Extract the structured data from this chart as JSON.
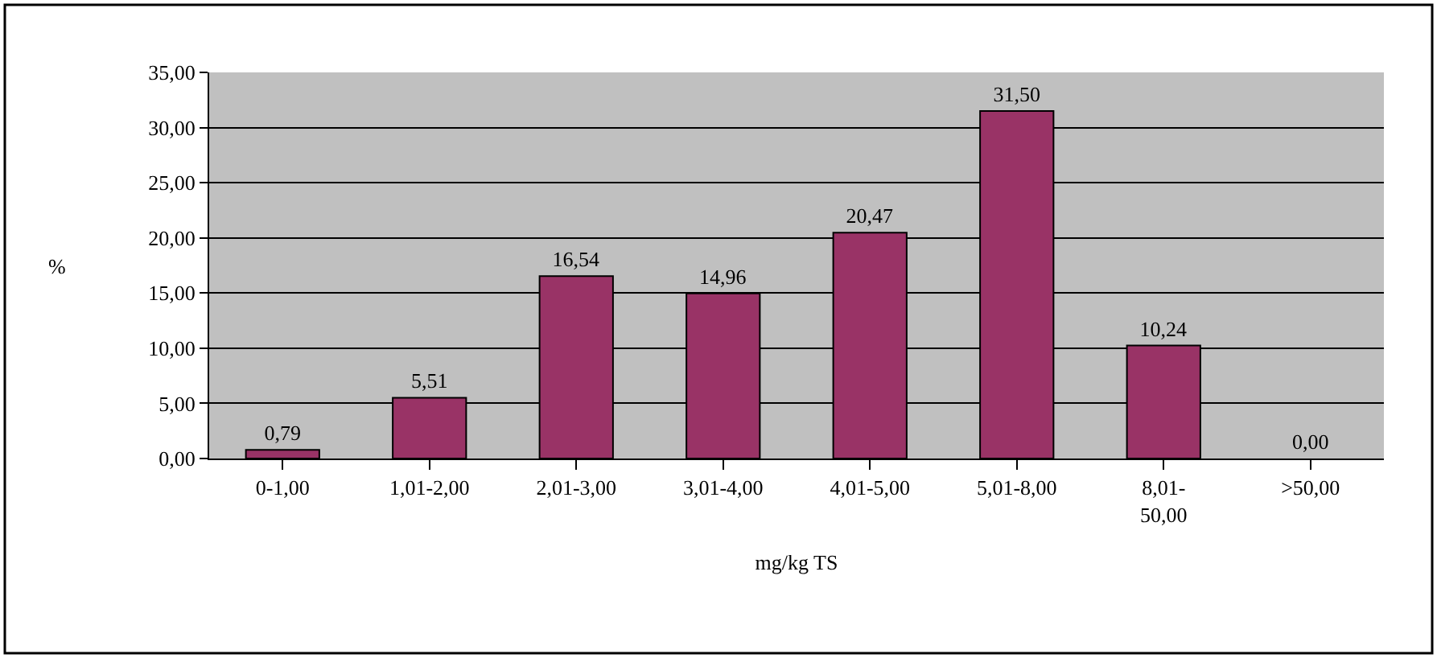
{
  "chart_data": {
    "type": "bar",
    "categories": [
      "0-1,00",
      "1,01-2,00",
      "2,01-3,00",
      "3,01-4,00",
      "4,01-5,00",
      "5,01-8,00",
      "8,01-50,00",
      ">50,00"
    ],
    "values": [
      0.79,
      5.51,
      16.54,
      14.96,
      20.47,
      31.5,
      10.24,
      0.0
    ],
    "value_labels": [
      "0,79",
      "5,51",
      "16,54",
      "14,96",
      "20,47",
      "31,50",
      "10,24",
      "0,00"
    ],
    "color": "#993366",
    "xlabel": "mg/kg TS",
    "ylabel": "%",
    "ylim": [
      0,
      35
    ],
    "yticks": [
      {
        "value": 0,
        "label": "0,00"
      },
      {
        "value": 5,
        "label": "5,00"
      },
      {
        "value": 10,
        "label": "10,00"
      },
      {
        "value": 15,
        "label": "15,00"
      },
      {
        "value": 20,
        "label": "20,00"
      },
      {
        "value": 25,
        "label": "25,00"
      },
      {
        "value": 30,
        "label": "30,00"
      },
      {
        "value": 35,
        "label": "35,00"
      }
    ],
    "grid": "y",
    "legend": false
  }
}
